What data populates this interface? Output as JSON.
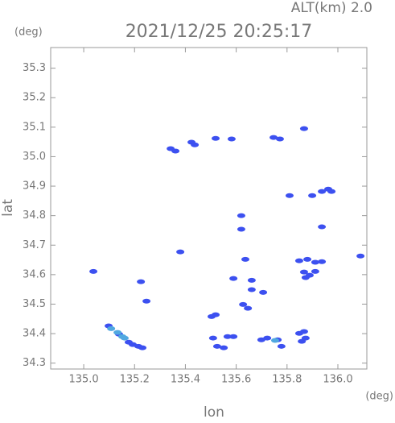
{
  "chart_data": {
    "type": "scatter",
    "title": "2021/12/25 20:25:17",
    "subtitle": "ALT(km) 2.0",
    "x_label": "lon",
    "y_label": "lat",
    "x_unit": "(deg)",
    "y_unit": "(deg)",
    "xlim": [
      134.87,
      136.114
    ],
    "ylim": [
      34.28,
      35.37
    ],
    "xticks": [
      {
        "value": 135,
        "label": "135.0"
      },
      135.2,
      135.4,
      135.6,
      135.8,
      {
        "value": 136,
        "label": "136.0"
      }
    ],
    "yticks": [
      34.3,
      34.4,
      34.5,
      34.6,
      34.7,
      34.8,
      34.9,
      {
        "value": 35,
        "label": "35.0"
      },
      35.1,
      35.2,
      35.3
    ],
    "grid": false,
    "series": [
      {
        "color": "#3c50f0",
        "x": [
          135.342,
          135.361,
          135.424,
          135.437,
          135.519,
          135.582,
          135.747,
          135.772,
          135.867,
          135.81,
          135.899,
          135.937,
          135.962,
          135.975,
          135.62,
          135.62,
          135.937,
          135.38,
          135.636,
          135.848,
          135.88,
          135.911,
          135.937,
          135.867,
          135.889,
          135.911,
          135.873,
          136.089,
          135.038,
          135.225,
          135.589,
          135.661,
          135.661,
          135.706,
          135.247,
          135.627,
          135.646,
          135.503,
          135.519,
          135.098,
          135.139,
          135.177,
          135.193,
          135.215,
          135.231,
          135.509,
          135.566,
          135.589,
          135.525,
          135.551,
          135.699,
          135.722,
          135.763,
          135.778,
          135.848,
          135.867,
          135.873,
          135.858
        ],
        "y": [
          35.027,
          35.019,
          35.049,
          35.04,
          35.062,
          35.06,
          35.065,
          35.06,
          35.095,
          34.868,
          34.868,
          34.882,
          34.89,
          34.882,
          34.8,
          34.754,
          34.762,
          34.677,
          34.652,
          34.647,
          34.652,
          34.642,
          34.644,
          34.609,
          34.598,
          34.611,
          34.59,
          34.663,
          34.611,
          34.576,
          34.587,
          34.581,
          34.549,
          34.54,
          34.51,
          34.499,
          34.486,
          34.458,
          34.464,
          34.426,
          34.398,
          34.371,
          34.363,
          34.357,
          34.352,
          34.385,
          34.39,
          34.39,
          34.357,
          34.352,
          34.379,
          34.385,
          34.379,
          34.357,
          34.401,
          34.407,
          34.385,
          34.374
        ]
      },
      {
        "color": "#50a8e0",
        "x": [
          135.108,
          135.133,
          135.152,
          135.161,
          135.753
        ],
        "y": [
          34.417,
          34.404,
          34.39,
          34.385,
          34.377
        ]
      }
    ]
  }
}
